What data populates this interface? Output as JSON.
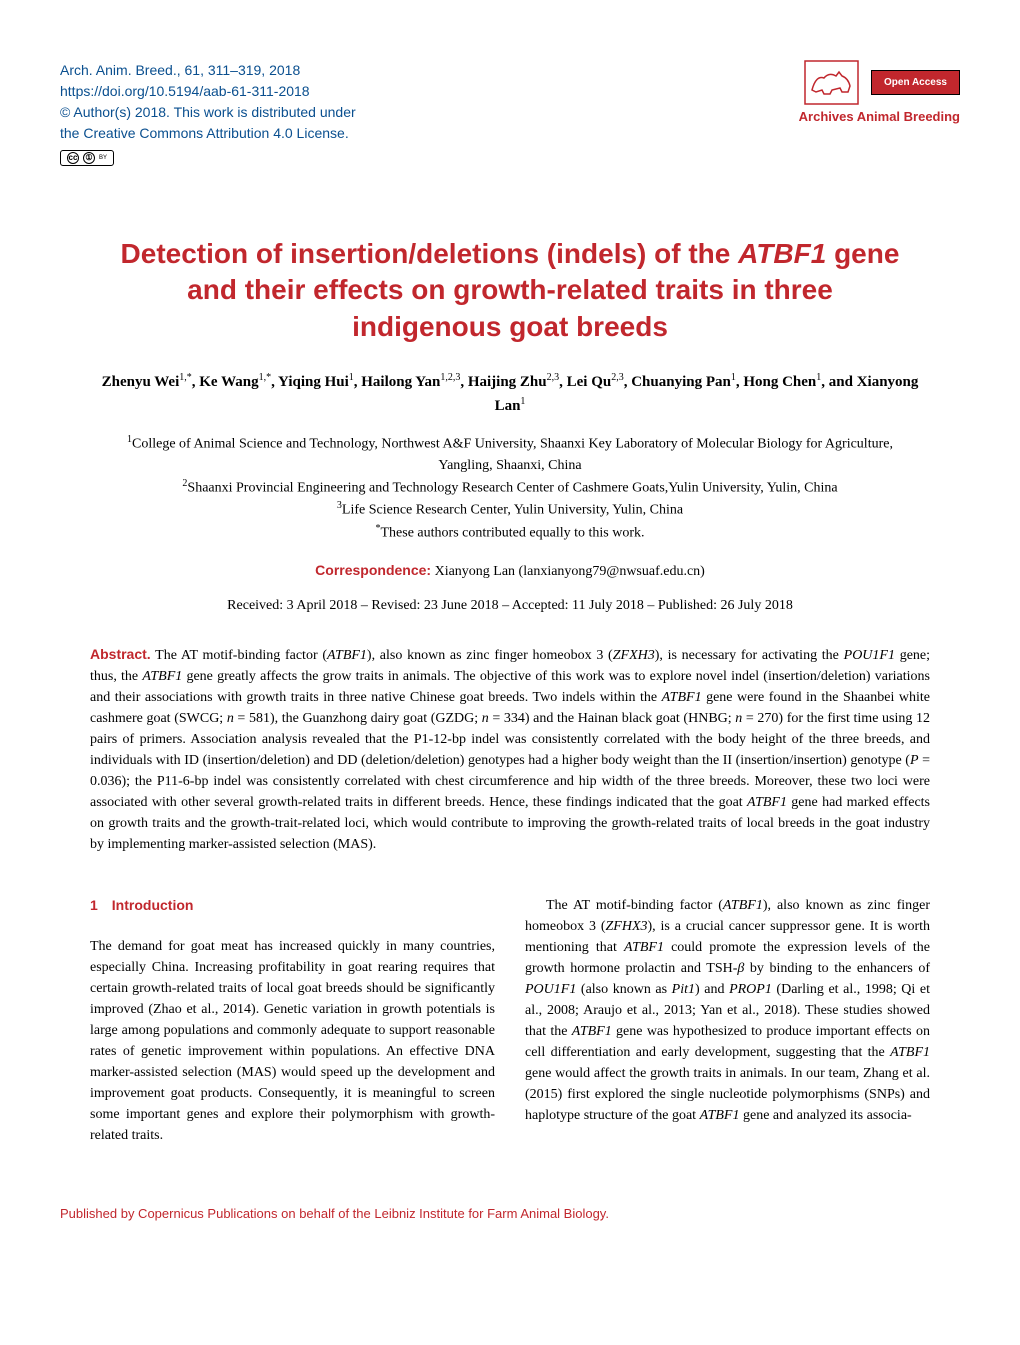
{
  "header": {
    "journal_ref": "Arch. Anim. Breed., 61, 311–319, 2018",
    "doi": "https://doi.org/10.5194/aab-61-311-2018",
    "copyright": "© Author(s) 2018. This work is distributed under",
    "license": "the Creative Commons Attribution 4.0 License.",
    "open_access": "Open Access",
    "journal_name": "Archives Animal Breeding",
    "cc_text": "BY"
  },
  "title": "Detection of insertion/deletions (indels) of the ATBF1 gene and their effects on growth-related traits in three indigenous goat breeds",
  "authors_html": "Zhenyu Wei<sup>1,*</sup>, Ke Wang<sup>1,*</sup>, Yiqing Hui<sup>1</sup>, Hailong Yan<sup>1,2,3</sup>, Haijing Zhu<sup>2,3</sup>, Lei Qu<sup>2,3</sup>, Chuanying Pan<sup>1</sup>, Hong Chen<sup>1</sup>, and Xianyong Lan<sup>1</sup>",
  "affiliations": [
    "<sup>1</sup>College of Animal Science and Technology, Northwest A&F University, Shaanxi Key Laboratory of Molecular Biology for Agriculture, Yangling, Shaanxi, China",
    "<sup>2</sup>Shaanxi Provincial Engineering and Technology Research Center of Cashmere Goats,Yulin University, Yulin, China",
    "<sup>3</sup>Life Science Research Center, Yulin University, Yulin, China",
    "<sup>*</sup>These authors contributed equally to this work."
  ],
  "correspondence": {
    "label": "Correspondence:",
    "text": "Xianyong Lan (lanxianyong79@nwsuaf.edu.cn)"
  },
  "dates": "Received: 3 April 2018 – Revised: 23 June 2018 – Accepted: 11 July 2018 – Published: 26 July 2018",
  "abstract": {
    "label": "Abstract.",
    "text": "The AT motif-binding factor (<i>ATBF1</i>), also known as zinc finger homeobox 3 (<i>ZFXH3</i>), is necessary for activating the <i>POU1F1</i> gene; thus, the <i>ATBF1</i> gene greatly affects the grow traits in animals. The objective of this work was to explore novel indel (insertion/deletion) variations and their associations with growth traits in three native Chinese goat breeds. Two indels within the <i>ATBF1</i> gene were found in the Shaanbei white cashmere goat (SWCG; <i>n</i> = 581), the Guanzhong dairy goat (GZDG; <i>n</i> = 334) and the Hainan black goat (HNBG; <i>n</i> = 270) for the first time using 12 pairs of primers. Association analysis revealed that the P1-12-bp indel was consistently correlated with the body height of the three breeds, and individuals with ID (insertion/deletion) and DD (deletion/deletion) genotypes had a higher body weight than the II (insertion/insertion) genotype (<i>P</i> = 0.036); the P11-6-bp indel was consistently correlated with chest circumference and hip width of the three breeds. Moreover, these two loci were associated with other several growth-related traits in different breeds. Hence, these findings indicated that the goat <i>ATBF1</i> gene had marked effects on growth traits and the growth-trait-related loci, which would contribute to improving the growth-related traits of local breeds in the goat industry by implementing marker-assisted selection (MAS)."
  },
  "introduction": {
    "heading": "1 Introduction",
    "col1": "The demand for goat meat has increased quickly in many countries, especially China. Increasing profitability in goat rearing requires that certain growth-related traits of local goat breeds should be significantly improved (Zhao et al., 2014). Genetic variation in growth potentials is large among populations and commonly adequate to support reasonable rates of genetic improvement within populations. An effective DNA marker-assisted selection (MAS) would speed up the development and improvement goat products. Consequently, it is meaningful to screen some important genes and explore their polymorphism with growth-related traits.",
    "col2": "The AT motif-binding factor (<i>ATBF1</i>), also known as zinc finger homeobox 3 (<i>ZFHX3</i>), is a crucial cancer suppressor gene. It is worth mentioning that <i>ATBF1</i> could promote the expression levels of the growth hormone prolactin and TSH-<i>β</i> by binding to the enhancers of <i>POU1F1</i> (also known as <i>Pit1</i>) and <i>PROP1</i> (Darling et al., 1998; Qi et al., 2008; Araujo et al., 2013; Yan et al., 2018). These studies showed that the <i>ATBF1</i> gene was hypothesized to produce important effects on cell differentiation and early development, suggesting that the <i>ATBF1</i> gene would affect the growth traits in animals. In our team, Zhang et al. (2015) first explored the single nucleotide polymorphisms (SNPs) and haplotype structure of the goat <i>ATBF1</i> gene and analyzed its associa-"
  },
  "footer": "Published by Copernicus Publications on behalf of the Leibniz Institute for Farm Animal Biology.",
  "colors": {
    "accent_red": "#c1272d",
    "accent_blue": "#0a4f8f",
    "text": "#000000",
    "background": "#ffffff"
  }
}
